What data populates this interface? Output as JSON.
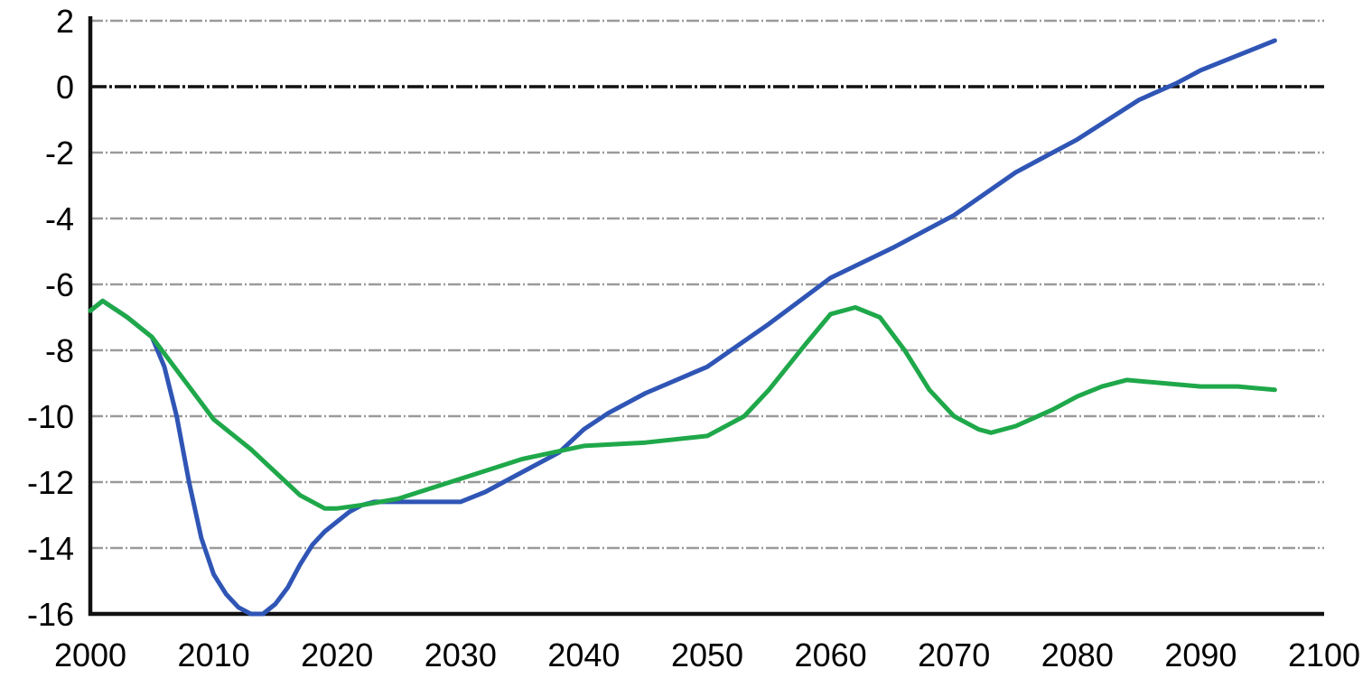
{
  "chart_data": {
    "type": "line",
    "title": "",
    "xlabel": "",
    "ylabel": "",
    "xlim": [
      2000,
      2100
    ],
    "ylim": [
      -16,
      2
    ],
    "x_ticks": [
      "2000",
      "2010",
      "2020",
      "2030",
      "2040",
      "2050",
      "2060",
      "2070",
      "2080",
      "2090",
      "2100"
    ],
    "y_ticks": [
      "2",
      "0",
      "-2",
      "-4",
      "-6",
      "-8",
      "-10",
      "-12",
      "-14",
      "-16"
    ],
    "grid": true,
    "legend": "none",
    "series": [
      {
        "color": "#2f55b5",
        "x": [
          2000,
          2001,
          2003,
          2005,
          2006,
          2007,
          2008,
          2009,
          2010,
          2011,
          2012,
          2013,
          2014,
          2015,
          2016,
          2017,
          2018,
          2019,
          2020,
          2021,
          2022,
          2023,
          2025,
          2028,
          2030,
          2032,
          2035,
          2038,
          2040,
          2042,
          2045,
          2050,
          2055,
          2060,
          2065,
          2070,
          2075,
          2080,
          2085,
          2088,
          2090,
          2096
        ],
        "y": [
          -6.8,
          -6.5,
          -7.0,
          -7.6,
          -8.5,
          -10.0,
          -12.0,
          -13.7,
          -14.8,
          -15.4,
          -15.8,
          -16.0,
          -16.0,
          -15.7,
          -15.2,
          -14.5,
          -13.9,
          -13.5,
          -13.2,
          -12.9,
          -12.7,
          -12.6,
          -12.6,
          -12.6,
          -12.6,
          -12.3,
          -11.7,
          -11.1,
          -10.4,
          -9.9,
          -9.3,
          -8.5,
          -7.2,
          -5.8,
          -4.9,
          -3.9,
          -2.6,
          -1.6,
          -0.4,
          0.1,
          0.5,
          1.4
        ]
      },
      {
        "color": "#1fa84a",
        "x": [
          2000,
          2001,
          2003,
          2005,
          2007,
          2010,
          2013,
          2015,
          2017,
          2019,
          2020,
          2022,
          2025,
          2030,
          2035,
          2040,
          2045,
          2050,
          2053,
          2055,
          2058,
          2060,
          2062,
          2064,
          2066,
          2068,
          2070,
          2072,
          2073,
          2075,
          2078,
          2080,
          2082,
          2084,
          2087,
          2090,
          2093,
          2096
        ],
        "y": [
          -6.8,
          -6.5,
          -7.0,
          -7.6,
          -8.6,
          -10.1,
          -11.0,
          -11.7,
          -12.4,
          -12.8,
          -12.8,
          -12.7,
          -12.5,
          -11.9,
          -11.3,
          -10.9,
          -10.8,
          -10.6,
          -10.0,
          -9.2,
          -7.8,
          -6.9,
          -6.7,
          -7.0,
          -8.0,
          -9.2,
          -10.0,
          -10.4,
          -10.5,
          -10.3,
          -9.8,
          -9.4,
          -9.1,
          -8.9,
          -9.0,
          -9.1,
          -9.1,
          -9.2
        ]
      }
    ]
  }
}
